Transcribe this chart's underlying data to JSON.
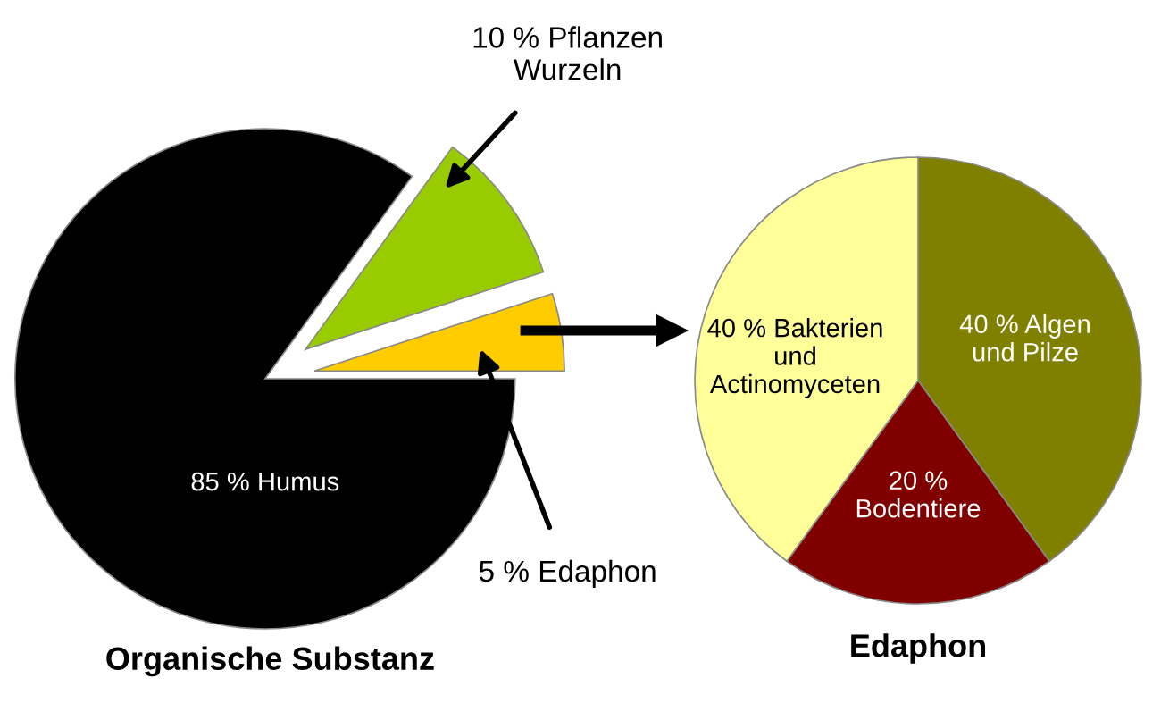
{
  "chart_data": [
    {
      "type": "pie",
      "title": "Organische Substanz",
      "categories": [
        null,
        null,
        null
      ],
      "values": [
        5,
        10,
        85
      ],
      "colors": [
        "#ffcc00",
        "#99cc00",
        "#000000"
      ],
      "value_labels": [
        "5 % Edaphon",
        "10 % Pflanzen\nWurzeln",
        "85 % Humus"
      ]
    },
    {
      "type": "pie",
      "title": "Edaphon",
      "categories": [
        null,
        null,
        null
      ],
      "values": [
        40,
        20,
        40
      ],
      "colors": [
        "#808000",
        "#800000",
        "#ffff99"
      ],
      "value_labels": [
        "40 % Algen\nund Pilze",
        "20 %\nBodentiere",
        "40 % Bakterien\nund\nActinomyceten"
      ]
    }
  ]
}
